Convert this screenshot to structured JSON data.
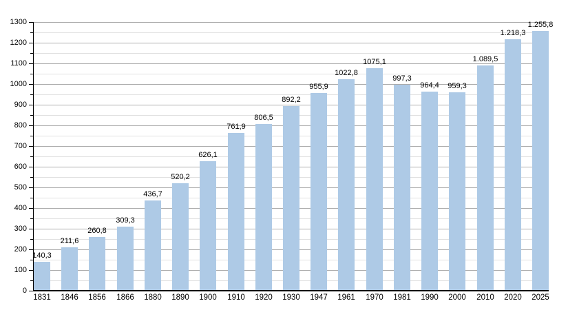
{
  "chart_data": {
    "type": "bar",
    "title": "",
    "xlabel": "",
    "ylabel": "",
    "categories": [
      "1831",
      "1846",
      "1856",
      "1866",
      "1880",
      "1890",
      "1900",
      "1910",
      "1920",
      "1930",
      "1947",
      "1961",
      "1970",
      "1981",
      "1990",
      "2000",
      "2010",
      "2020",
      "2025"
    ],
    "values": [
      140.3,
      211.6,
      260.8,
      309.3,
      436.7,
      520.2,
      626.1,
      761.9,
      806.5,
      892.2,
      955.9,
      1022.8,
      1075.1,
      997.3,
      964.4,
      959.3,
      1089.5,
      1218.3,
      1255.8
    ],
    "value_labels": [
      "140,3",
      "211,6",
      "260,8",
      "309,3",
      "436,7",
      "520,2",
      "626,1",
      "761,9",
      "806,5",
      "892,2",
      "955,9",
      "1022,8",
      "1075,1",
      "997,3",
      "964,4",
      "959,3",
      "1.089,5",
      "1.218,3",
      "1.255,8"
    ],
    "ylim": [
      0,
      1300
    ],
    "y_major_step": 100,
    "y_minor_step": 50,
    "y_tick_labels": [
      "0",
      "100",
      "200",
      "300",
      "400",
      "500",
      "600",
      "700",
      "800",
      "900",
      "1000",
      "1100",
      "1200",
      "1300"
    ],
    "grid": true,
    "legend": false,
    "colors": {
      "bar_fill": "#aecae6",
      "major_grid": "#ababab",
      "minor_grid": "#e0e0e0",
      "axis": "#000000",
      "text": "#000000",
      "background": "#ffffff"
    }
  }
}
